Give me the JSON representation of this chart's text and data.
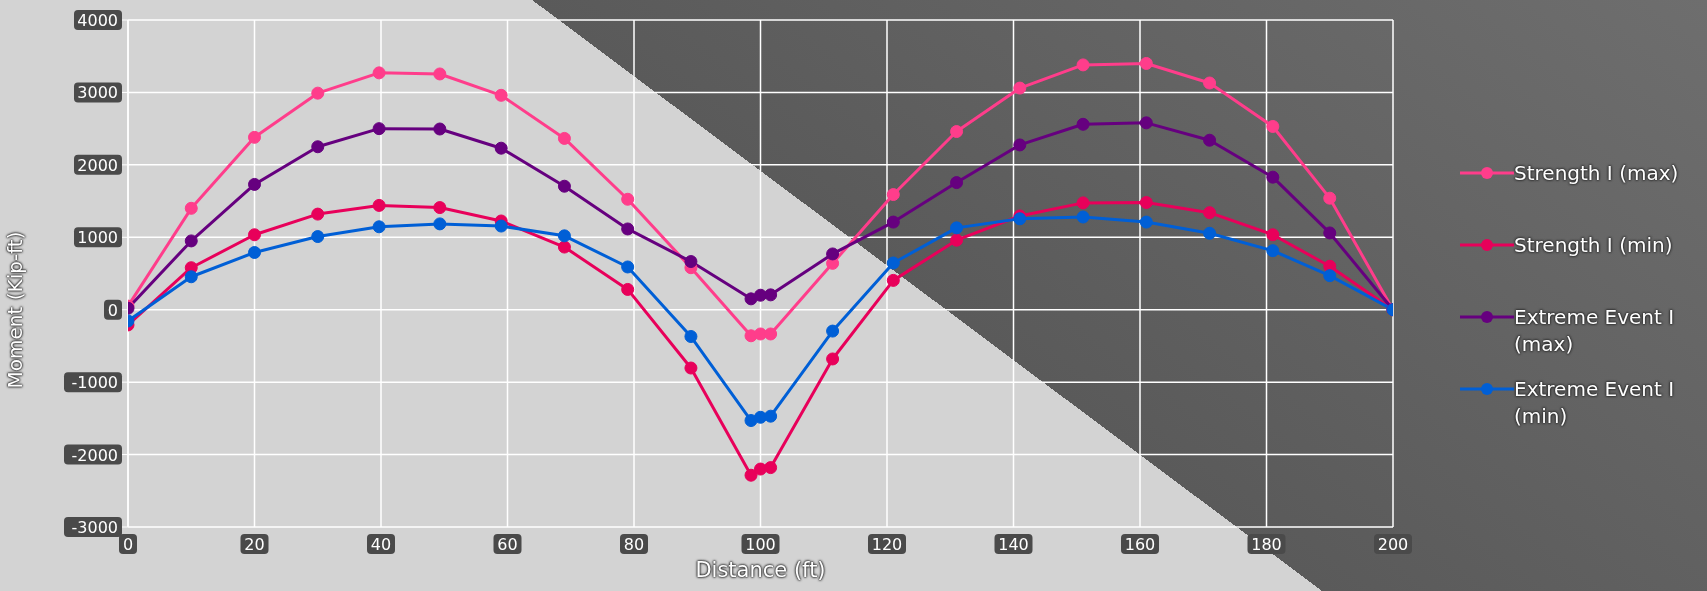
{
  "chart_data": {
    "type": "line",
    "xlabel": "Distance (ft)",
    "ylabel": "Moment (Kip-ft)",
    "x": [
      0,
      10,
      20,
      30,
      39.7,
      49.3,
      59,
      69,
      79,
      89,
      98.5,
      100,
      101.6,
      111.4,
      121,
      131,
      141,
      151,
      161,
      171,
      181,
      190,
      200
    ],
    "series": [
      {
        "name": "Strength I (max)",
        "color": "#ff3d8b",
        "values": [
          50,
          1400,
          2380,
          2990,
          3270,
          3255,
          2960,
          2365,
          1525,
          580,
          -360,
          -335,
          -335,
          640,
          1590,
          2460,
          3060,
          3380,
          3400,
          3130,
          2530,
          1540,
          0
        ]
      },
      {
        "name": "Strength I (min)",
        "color": "#e8005a",
        "values": [
          -210,
          580,
          1035,
          1320,
          1440,
          1410,
          1225,
          865,
          280,
          -805,
          -2285,
          -2200,
          -2180,
          -680,
          405,
          960,
          1295,
          1475,
          1480,
          1340,
          1035,
          600,
          0
        ]
      },
      {
        "name": "Extreme Event I (max)",
        "color": "#66007f",
        "values": [
          20,
          950,
          1730,
          2250,
          2500,
          2495,
          2230,
          1705,
          1115,
          665,
          150,
          200,
          205,
          770,
          1210,
          1755,
          2275,
          2560,
          2580,
          2340,
          1830,
          1060,
          0
        ]
      },
      {
        "name": "Extreme Event I (min)",
        "color": "#005fd6",
        "values": [
          -155,
          455,
          790,
          1010,
          1145,
          1185,
          1155,
          1020,
          590,
          -370,
          -1530,
          -1485,
          -1470,
          -295,
          645,
          1130,
          1255,
          1280,
          1210,
          1055,
          815,
          470,
          0
        ]
      }
    ],
    "xlim": [
      0,
      200
    ],
    "xticks": [
      0,
      20,
      40,
      60,
      80,
      100,
      120,
      140,
      160,
      180,
      200
    ],
    "ylim": [
      -3000,
      4000
    ],
    "yticks": [
      -3000,
      -2000,
      -1000,
      0,
      1000,
      2000,
      3000,
      4000
    ],
    "grid": true,
    "legend": "right",
    "marker": "circle",
    "line_style": "solid"
  }
}
